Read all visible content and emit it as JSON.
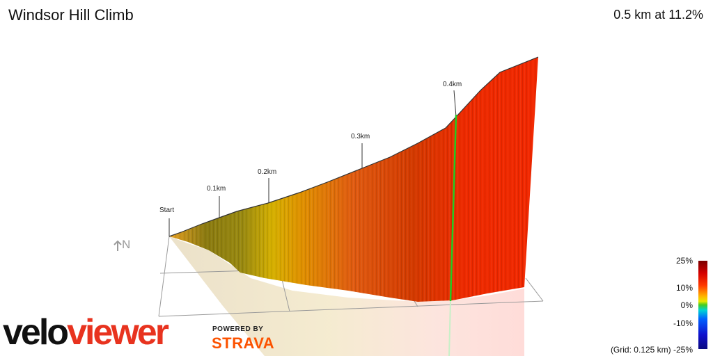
{
  "header": {
    "title": "Windsor Hill Climb",
    "summary": "0.5 km at 11.2%"
  },
  "profile": {
    "markers": [
      "Start",
      "0.1km",
      "0.2km",
      "0.3km",
      "0.4km"
    ]
  },
  "compass": {
    "icon": "north-arrow-icon",
    "label": "N"
  },
  "branding": {
    "logo_part1": "velo",
    "logo_part2": "viewer",
    "powered_by": "POWERED BY",
    "strava": "STRAVA"
  },
  "legend": {
    "labels": [
      "25%",
      "10%",
      "0%",
      "-10%",
      "-25%"
    ],
    "grid_note": "(Grid: 0.125 km)"
  },
  "colors": {
    "low_gradient": "#8a7a10",
    "mid_gradient": "#e0a000",
    "high_gradient": "#ee2200",
    "highlight_line": "#22cc22",
    "strava_orange": "#fc5200",
    "veloviewer_red": "#e8331f"
  }
}
